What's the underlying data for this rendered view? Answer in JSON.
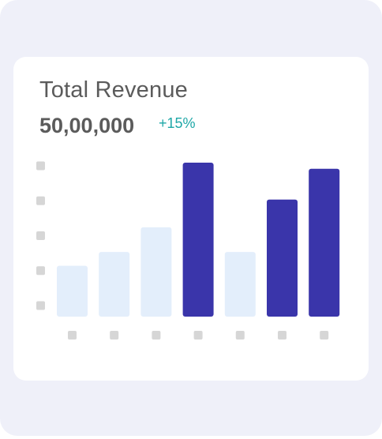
{
  "card": {
    "title": "Total Revenue",
    "amount": "50,00,000",
    "change": "+15%"
  },
  "colors": {
    "background": "#eff0f9",
    "card": "#ffffff",
    "bar_highlight": "#3a35aa",
    "bar_muted": "#e3eefb",
    "placeholder_tick": "#d6d6d6",
    "change_positive": "#1ea7a7",
    "text_primary": "#5b5b5b"
  },
  "chart_data": {
    "type": "bar",
    "categories": [
      "",
      "",
      "",
      "",
      "",
      "",
      ""
    ],
    "values": [
      33,
      42,
      58,
      100,
      42,
      76,
      96
    ],
    "highlighted": [
      false,
      false,
      false,
      true,
      false,
      true,
      true
    ],
    "ylim": [
      0,
      100
    ],
    "title": "",
    "xlabel": "",
    "ylabel": "",
    "grid": false,
    "y_tick_count": 5,
    "x_tick_count": 7
  }
}
